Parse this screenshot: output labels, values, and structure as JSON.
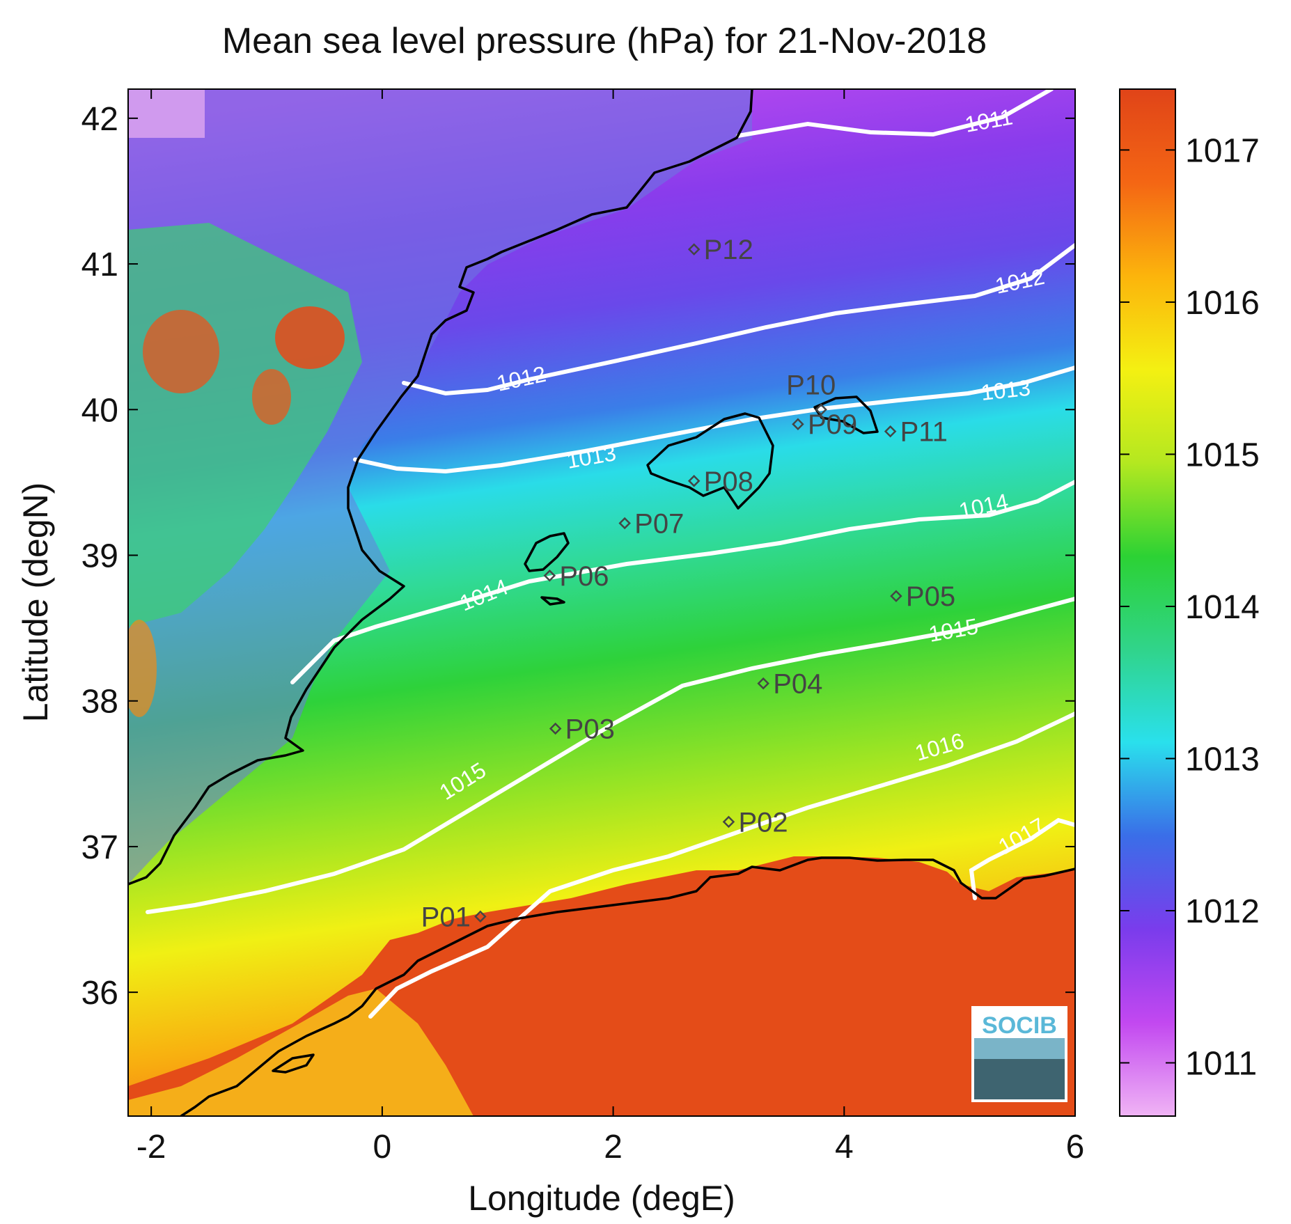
{
  "title": "Mean sea level pressure (hPa) for 21-Nov-2018",
  "xaxis": {
    "label": "Longitude (degE)",
    "range": [
      -2.2,
      6.0
    ],
    "ticks": [
      "-2",
      "0",
      "2",
      "4",
      "6"
    ],
    "tick_values": [
      -2,
      0,
      2,
      4,
      6
    ]
  },
  "yaxis": {
    "label": "Latitude (degN)",
    "range": [
      35.15,
      42.2
    ],
    "ticks": [
      "36",
      "37",
      "38",
      "39",
      "40",
      "41",
      "42"
    ],
    "tick_values": [
      36,
      37,
      38,
      39,
      40,
      41,
      42
    ]
  },
  "colorbar": {
    "range": [
      1010.65,
      1017.4
    ],
    "ticks": [
      "1011",
      "1012",
      "1013",
      "1014",
      "1015",
      "1016",
      "1017"
    ],
    "tick_values": [
      1011,
      1012,
      1013,
      1014,
      1015,
      1016,
      1017
    ],
    "colors": [
      "#f0b4f5",
      "#c248f0",
      "#7a3cec",
      "#3a6ee8",
      "#2ae0ec",
      "#30d48a",
      "#2cd234",
      "#b4e820",
      "#f4f012",
      "#fcb40c",
      "#f46614",
      "#e04418"
    ]
  },
  "contours": [
    {
      "label": "1011",
      "level": 1011
    },
    {
      "label": "1012",
      "level": 1012
    },
    {
      "label": "1012",
      "level": 1012
    },
    {
      "label": "1013",
      "level": 1013
    },
    {
      "label": "1013",
      "level": 1013
    },
    {
      "label": "1014",
      "level": 1014
    },
    {
      "label": "1014",
      "level": 1014
    },
    {
      "label": "1015",
      "level": 1015
    },
    {
      "label": "1015",
      "level": 1015
    },
    {
      "label": "1016",
      "level": 1016
    },
    {
      "label": "1017",
      "level": 1017
    }
  ],
  "stations": [
    {
      "id": "P01",
      "lon": 0.85,
      "lat": 36.52
    },
    {
      "id": "P02",
      "lon": 3.0,
      "lat": 37.17
    },
    {
      "id": "P03",
      "lon": 1.5,
      "lat": 37.81
    },
    {
      "id": "P04",
      "lon": 3.3,
      "lat": 38.12
    },
    {
      "id": "P05",
      "lon": 4.45,
      "lat": 38.72
    },
    {
      "id": "P06",
      "lon": 1.45,
      "lat": 38.86
    },
    {
      "id": "P07",
      "lon": 2.1,
      "lat": 39.22
    },
    {
      "id": "P08",
      "lon": 2.7,
      "lat": 39.51
    },
    {
      "id": "P09",
      "lon": 3.6,
      "lat": 39.9
    },
    {
      "id": "P10",
      "lon": 3.8,
      "lat": 40.0
    },
    {
      "id": "P11",
      "lon": 4.4,
      "lat": 39.85
    },
    {
      "id": "P12",
      "lon": 2.7,
      "lat": 41.1
    }
  ],
  "logo": {
    "text": "SOCIB"
  }
}
